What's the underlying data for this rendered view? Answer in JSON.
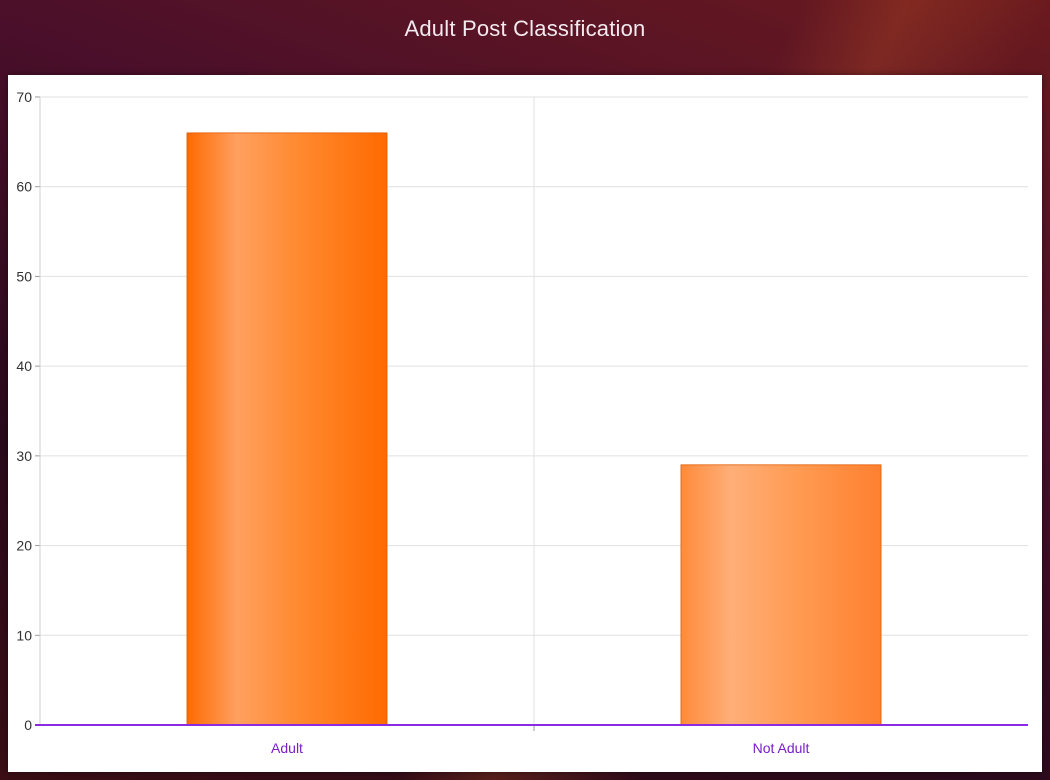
{
  "chart_data": {
    "type": "bar",
    "title": "Adult Post Classification",
    "categories": [
      "Adult",
      "Not Adult"
    ],
    "values": [
      66,
      29
    ],
    "xlabel": "",
    "ylabel": "",
    "ylim": [
      0,
      70
    ],
    "yticks": [
      "0",
      "10",
      "20",
      "30",
      "40",
      "50",
      "60",
      "70"
    ],
    "grid": true,
    "legend": "none",
    "colors": {
      "bar": "#ff6a00",
      "bar_highlight": "#ffa060",
      "axis": "#8a2be2",
      "grid": "#e0e0e0",
      "category_label": "#7a1ec8"
    }
  }
}
